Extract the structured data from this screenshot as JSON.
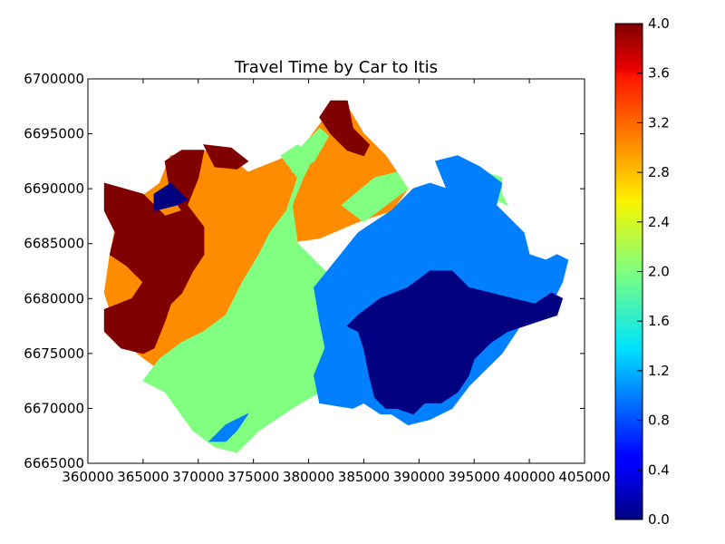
{
  "chart_data": {
    "type": "heatmap",
    "title": "Travel Time by Car to Itis",
    "xlabel": "",
    "ylabel": "",
    "x_ticks": [
      "360000",
      "365000",
      "370000",
      "375000",
      "380000",
      "385000",
      "390000",
      "395000",
      "400000",
      "405000"
    ],
    "y_ticks": [
      "6665000",
      "6670000",
      "6675000",
      "6680000",
      "6685000",
      "6690000",
      "6695000",
      "6700000"
    ],
    "xlim": [
      360000,
      405000
    ],
    "ylim": [
      6665000,
      6700000
    ],
    "grid": false,
    "colorbar": {
      "colormap": "jet",
      "range": [
        0.0,
        4.0
      ],
      "ticks": [
        "0.0",
        "0.4",
        "0.8",
        "1.2",
        "1.6",
        "2.0",
        "2.4",
        "2.8",
        "3.2",
        "3.6",
        "4.0"
      ]
    },
    "regions": [
      {
        "class_value": 3.0,
        "color": "#ff8c00",
        "polygon": [
          [
            367500,
            6693000
          ],
          [
            372000,
            6693600
          ],
          [
            374500,
            6691500
          ],
          [
            377000,
            6692500
          ],
          [
            379000,
            6693400
          ],
          [
            380000,
            6694500
          ],
          [
            381500,
            6696500
          ],
          [
            383500,
            6697500
          ],
          [
            385000,
            6695000
          ],
          [
            387000,
            6693000
          ],
          [
            389000,
            6690000
          ],
          [
            387500,
            6688000
          ],
          [
            384500,
            6687000
          ],
          [
            381000,
            6685500
          ],
          [
            377500,
            6685000
          ],
          [
            375500,
            6683000
          ],
          [
            374500,
            6679500
          ],
          [
            373500,
            6677500
          ],
          [
            371000,
            6676500
          ],
          [
            369000,
            6674500
          ],
          [
            366500,
            6673500
          ],
          [
            364500,
            6675000
          ],
          [
            362500,
            6677500
          ],
          [
            361500,
            6680500
          ],
          [
            362000,
            6684000
          ],
          [
            362500,
            6686500
          ],
          [
            364500,
            6689000
          ],
          [
            366500,
            6690500
          ]
        ]
      },
      {
        "class_value": 4.0,
        "color": "#800000",
        "polygon": [
          [
            361500,
            6690500
          ],
          [
            365000,
            6689500
          ],
          [
            367000,
            6687500
          ],
          [
            368500,
            6688000
          ],
          [
            367500,
            6689500
          ],
          [
            367000,
            6692500
          ],
          [
            368500,
            6693500
          ],
          [
            370500,
            6693500
          ],
          [
            370000,
            6691000
          ],
          [
            369000,
            6688500
          ],
          [
            370500,
            6686500
          ],
          [
            370500,
            6684000
          ],
          [
            369500,
            6682500
          ],
          [
            368500,
            6680500
          ],
          [
            367500,
            6679500
          ],
          [
            367000,
            6678000
          ],
          [
            366000,
            6675500
          ],
          [
            365000,
            6675000
          ],
          [
            363000,
            6675500
          ],
          [
            361500,
            6677000
          ],
          [
            361500,
            6679000
          ],
          [
            364000,
            6680000
          ],
          [
            365000,
            6681500
          ],
          [
            363500,
            6683000
          ],
          [
            362000,
            6684000
          ],
          [
            362500,
            6686000
          ],
          [
            361500,
            6688000
          ]
        ]
      },
      {
        "class_value": 4.0,
        "color": "#800000",
        "polygon": [
          [
            370500,
            6694000
          ],
          [
            373000,
            6693700
          ],
          [
            374500,
            6692500
          ],
          [
            373500,
            6691800
          ],
          [
            371500,
            6692000
          ]
        ]
      },
      {
        "class_value": 4.0,
        "color": "#800000",
        "polygon": [
          [
            381000,
            6696500
          ],
          [
            382000,
            6698000
          ],
          [
            383500,
            6698000
          ],
          [
            384000,
            6695500
          ],
          [
            385500,
            6694000
          ],
          [
            385000,
            6693000
          ],
          [
            383500,
            6693500
          ],
          [
            382000,
            6695000
          ]
        ]
      },
      {
        "class_value": 2.0,
        "color": "#80ff80",
        "polygon": [
          [
            365000,
            6672500
          ],
          [
            367000,
            6671500
          ],
          [
            369500,
            6668000
          ],
          [
            371500,
            6666500
          ],
          [
            373500,
            6666000
          ],
          [
            375500,
            6668000
          ],
          [
            378500,
            6670000
          ],
          [
            381000,
            6671500
          ],
          [
            383500,
            6674000
          ],
          [
            385000,
            6676500
          ],
          [
            384500,
            6680500
          ],
          [
            381500,
            6682500
          ],
          [
            379000,
            6685000
          ],
          [
            378500,
            6688500
          ],
          [
            379500,
            6691000
          ],
          [
            380500,
            6693000
          ],
          [
            379000,
            6694000
          ],
          [
            377500,
            6693000
          ],
          [
            379000,
            6691000
          ],
          [
            378000,
            6688000
          ],
          [
            376500,
            6686000
          ],
          [
            375500,
            6684000
          ],
          [
            374000,
            6681500
          ],
          [
            372500,
            6678500
          ],
          [
            370500,
            6677000
          ],
          [
            368500,
            6676000
          ],
          [
            366500,
            6674500
          ]
        ]
      },
      {
        "class_value": 2.0,
        "color": "#80ff80",
        "polygon": [
          [
            378500,
            6691500
          ],
          [
            379500,
            6694000
          ],
          [
            381000,
            6695500
          ],
          [
            381800,
            6694800
          ],
          [
            380500,
            6692500
          ]
        ]
      },
      {
        "class_value": 2.0,
        "color": "#80ff80",
        "polygon": [
          [
            383000,
            6688500
          ],
          [
            386000,
            6691000
          ],
          [
            388000,
            6691500
          ],
          [
            389000,
            6690000
          ],
          [
            387000,
            6688500
          ],
          [
            385000,
            6687000
          ]
        ]
      },
      {
        "class_value": 2.0,
        "color": "#80ff80",
        "polygon": [
          [
            393500,
            6692500
          ],
          [
            395000,
            6692000
          ],
          [
            396000,
            6691500
          ],
          [
            397500,
            6691000
          ],
          [
            397500,
            6689500
          ],
          [
            398000,
            6688500
          ],
          [
            396000,
            6689500
          ],
          [
            394500,
            6690500
          ]
        ]
      },
      {
        "class_value": 1.0,
        "color": "#0080ff",
        "polygon": [
          [
            380500,
            6681000
          ],
          [
            382500,
            6683500
          ],
          [
            384500,
            6686000
          ],
          [
            387500,
            6688000
          ],
          [
            389500,
            6690000
          ],
          [
            391000,
            6690500
          ],
          [
            392500,
            6690000
          ],
          [
            391500,
            6692500
          ],
          [
            393500,
            6693000
          ],
          [
            395500,
            6692000
          ],
          [
            397500,
            6690500
          ],
          [
            397000,
            6688500
          ],
          [
            398500,
            6687000
          ],
          [
            399500,
            6686000
          ],
          [
            400000,
            6684000
          ],
          [
            401500,
            6683500
          ],
          [
            402500,
            6684000
          ],
          [
            403500,
            6683500
          ],
          [
            403000,
            6681500
          ],
          [
            402000,
            6679500
          ],
          [
            401000,
            6678500
          ],
          [
            399500,
            6678000
          ],
          [
            398500,
            6676500
          ],
          [
            397500,
            6675000
          ],
          [
            396000,
            6673500
          ],
          [
            394500,
            6672000
          ],
          [
            393000,
            6670000
          ],
          [
            391000,
            6669000
          ],
          [
            389000,
            6668500
          ],
          [
            387500,
            6669500
          ],
          [
            386500,
            6669500
          ],
          [
            385000,
            6670500
          ],
          [
            384000,
            6670000
          ],
          [
            381000,
            6670500
          ],
          [
            380500,
            6673000
          ],
          [
            381500,
            6675500
          ],
          [
            381000,
            6678000
          ]
        ]
      },
      {
        "class_value": 1.0,
        "color": "#0080ff",
        "polygon": [
          [
            371000,
            6667000
          ],
          [
            372500,
            6668500
          ],
          [
            374500,
            6669500
          ],
          [
            373500,
            6668000
          ],
          [
            372500,
            6667000
          ]
        ]
      },
      {
        "class_value": 0.0,
        "color": "#000080",
        "polygon": [
          [
            384500,
            6678500
          ],
          [
            386500,
            6680000
          ],
          [
            389000,
            6681000
          ],
          [
            391000,
            6682500
          ],
          [
            393000,
            6682500
          ],
          [
            394500,
            6681000
          ],
          [
            396500,
            6680500
          ],
          [
            398500,
            6680000
          ],
          [
            400500,
            6679500
          ],
          [
            402000,
            6680500
          ],
          [
            403000,
            6680000
          ],
          [
            402500,
            6678500
          ],
          [
            401000,
            6678000
          ],
          [
            399500,
            6677500
          ],
          [
            398000,
            6677000
          ],
          [
            396500,
            6676000
          ],
          [
            395000,
            6674500
          ],
          [
            394500,
            6673000
          ],
          [
            393500,
            6671500
          ],
          [
            392000,
            6670500
          ],
          [
            390500,
            6670500
          ],
          [
            389500,
            6669500
          ],
          [
            388000,
            6670000
          ],
          [
            387000,
            6670000
          ],
          [
            386000,
            6671000
          ],
          [
            385500,
            6673000
          ],
          [
            385000,
            6675500
          ],
          [
            384500,
            6677000
          ],
          [
            383500,
            6677500
          ]
        ]
      },
      {
        "class_value": 0.0,
        "color": "#000080",
        "polygon": [
          [
            366000,
            6688000
          ],
          [
            368000,
            6688500
          ],
          [
            369000,
            6689000
          ],
          [
            367500,
            6690500
          ],
          [
            366000,
            6689500
          ]
        ]
      }
    ]
  }
}
